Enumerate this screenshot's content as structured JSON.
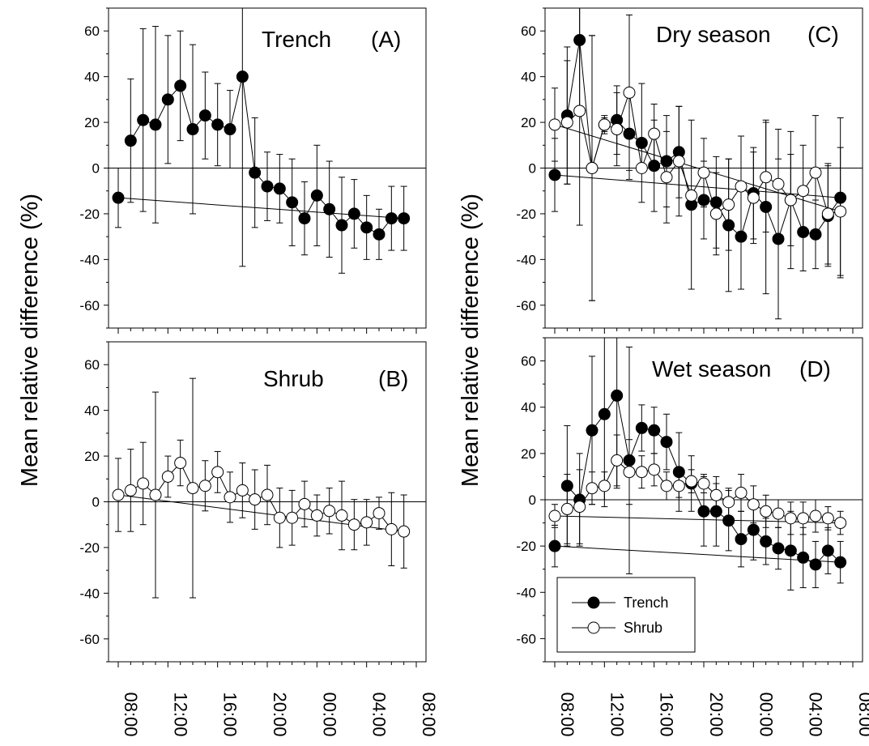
{
  "ylabel": "Mean relative difference (%)",
  "time_ticks": [
    "08:00",
    "12:00",
    "16:00",
    "20:00",
    "00:00",
    "04:00",
    "08:00"
  ],
  "legend": {
    "trench": "Trench",
    "shrub": "Shrub"
  },
  "colors": {
    "trench_fill": "#000000",
    "shrub_fill": "#ffffff",
    "line": "#000000"
  },
  "chart_data": [
    {
      "id": "A",
      "type": "line",
      "title": "Trench",
      "label": "(A)",
      "x": [
        "09:00",
        "10:00",
        "11:00",
        "12:00",
        "13:00",
        "14:00",
        "15:00",
        "16:00",
        "17:00",
        "18:00",
        "19:00",
        "20:00",
        "21:00",
        "22:00",
        "23:00",
        "00:00",
        "01:00",
        "02:00",
        "03:00",
        "04:00",
        "05:00",
        "06:00",
        "07:00",
        "08:00"
      ],
      "ylim": [
        -70,
        70
      ],
      "yticks": [
        -60,
        -40,
        -20,
        0,
        20,
        40,
        60
      ],
      "series": [
        {
          "key": "trench",
          "values": [
            12,
            21,
            19,
            30,
            36,
            17,
            23,
            19,
            17,
            40,
            -2,
            -8,
            -9,
            -15,
            -22,
            -12,
            -18,
            -25,
            -20,
            -26,
            -29,
            -22,
            -22,
            -13
          ],
          "err": [
            27,
            40,
            43,
            28,
            24,
            37,
            19,
            18,
            17,
            83,
            24,
            15,
            15,
            19,
            16,
            22,
            21,
            21,
            15,
            14,
            11,
            14,
            14,
            13
          ]
        }
      ]
    },
    {
      "id": "B",
      "type": "line",
      "title": "Shrub",
      "label": "(B)",
      "x": [
        "09:00",
        "10:00",
        "11:00",
        "12:00",
        "13:00",
        "14:00",
        "15:00",
        "16:00",
        "17:00",
        "18:00",
        "19:00",
        "20:00",
        "21:00",
        "22:00",
        "23:00",
        "00:00",
        "01:00",
        "02:00",
        "03:00",
        "04:00",
        "05:00",
        "06:00",
        "07:00",
        "08:00"
      ],
      "ylim": [
        -70,
        70
      ],
      "yticks": [
        -60,
        -40,
        -20,
        0,
        20,
        40,
        60
      ],
      "series": [
        {
          "key": "shrub",
          "values": [
            5,
            8,
            3,
            11,
            17,
            6,
            7,
            13,
            2,
            5,
            1,
            3,
            -7,
            -7,
            -1,
            -6,
            -4,
            -6,
            -10,
            -9,
            -5,
            -12,
            -13,
            3
          ],
          "err": [
            18,
            18,
            45,
            9,
            10,
            48,
            11,
            9,
            11,
            12,
            13,
            13,
            13,
            12,
            10,
            9,
            10,
            15,
            11,
            10,
            7,
            16,
            16,
            16
          ]
        }
      ]
    },
    {
      "id": "C",
      "type": "line",
      "title": "Dry season",
      "label": "(C)",
      "x": [
        "09:00",
        "10:00",
        "11:00",
        "12:00",
        "13:00",
        "14:00",
        "15:00",
        "16:00",
        "17:00",
        "18:00",
        "19:00",
        "20:00",
        "21:00",
        "22:00",
        "23:00",
        "00:00",
        "01:00",
        "02:00",
        "03:00",
        "04:00",
        "05:00",
        "06:00",
        "07:00",
        "08:00"
      ],
      "ylim": [
        -70,
        70
      ],
      "yticks": [
        -60,
        -40,
        -20,
        0,
        20,
        40,
        60
      ],
      "series": [
        {
          "key": "trench",
          "values": [
            23,
            56,
            0,
            19,
            21,
            15,
            11,
            1,
            3,
            7,
            -16,
            -14,
            -15,
            -25,
            -30,
            -11,
            -17,
            -31,
            -14,
            -28,
            -29,
            -21,
            -13,
            -3
          ],
          "err": [
            30,
            30,
            58,
            4,
            15,
            20,
            26,
            20,
            20,
            20,
            37,
            17,
            20,
            29,
            23,
            20,
            38,
            35,
            30,
            17,
            15,
            22,
            35,
            16
          ]
        },
        {
          "key": "shrub",
          "values": [
            20,
            25,
            0,
            19,
            17,
            33,
            0,
            15,
            -4,
            3,
            -12,
            -2,
            -20,
            -16,
            -8,
            -13,
            -4,
            -7,
            -14,
            -10,
            -2,
            -20,
            -19,
            19
          ],
          "err": [
            27,
            50,
            58,
            3,
            16,
            34,
            0,
            13,
            20,
            24,
            0,
            15,
            18,
            20,
            22,
            20,
            24,
            24,
            20,
            20,
            25,
            22,
            28,
            16
          ]
        }
      ]
    },
    {
      "id": "D",
      "type": "line",
      "title": "Wet season",
      "label": "(D)",
      "x": [
        "09:00",
        "10:00",
        "11:00",
        "12:00",
        "13:00",
        "14:00",
        "15:00",
        "16:00",
        "17:00",
        "18:00",
        "19:00",
        "20:00",
        "21:00",
        "22:00",
        "23:00",
        "00:00",
        "01:00",
        "02:00",
        "03:00",
        "04:00",
        "05:00",
        "06:00",
        "07:00",
        "08:00"
      ],
      "ylim": [
        -70,
        70
      ],
      "yticks": [
        -60,
        -40,
        -20,
        0,
        20,
        40,
        60
      ],
      "series": [
        {
          "key": "trench",
          "values": [
            6,
            0,
            30,
            37,
            45,
            17,
            31,
            30,
            25,
            12,
            7,
            -5,
            -5,
            -9,
            -17,
            -13,
            -18,
            -21,
            -22,
            -25,
            -28,
            -22,
            -27,
            -20
          ],
          "err": [
            26,
            20,
            32,
            40,
            40,
            49,
            10,
            10,
            12,
            17,
            12,
            15,
            15,
            13,
            12,
            13,
            10,
            9,
            17,
            13,
            10,
            10,
            9,
            9
          ]
        },
        {
          "key": "shrub",
          "values": [
            -4,
            -3,
            5,
            6,
            17,
            12,
            12,
            13,
            6,
            6,
            8,
            7,
            2,
            -1,
            3,
            -2,
            -5,
            -6,
            -8,
            -8,
            -7,
            -8,
            -10,
            -7
          ],
          "err": [
            15,
            16,
            7,
            6,
            11,
            14,
            7,
            7,
            6,
            5,
            5,
            4,
            5,
            6,
            8,
            8,
            7,
            6,
            7,
            7,
            7,
            5,
            5,
            5
          ]
        }
      ]
    }
  ]
}
